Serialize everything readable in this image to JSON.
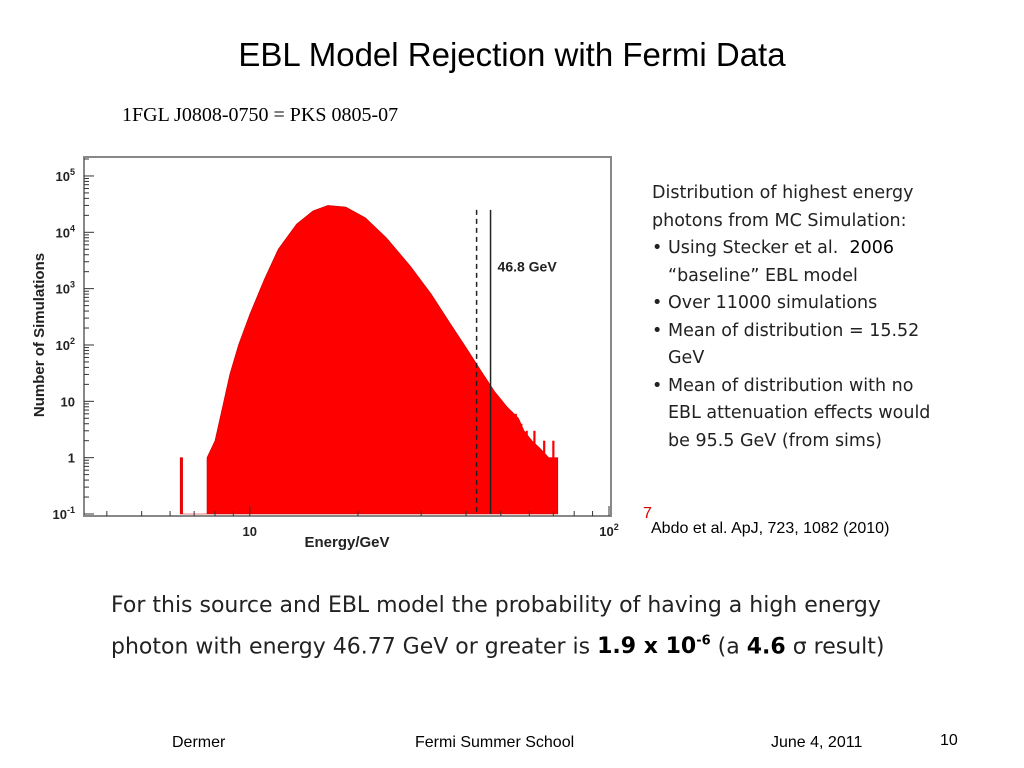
{
  "slide": {
    "title": "EBL Model Rejection with Fermi Data",
    "subtitle": "1FGL J0808-0750 = PKS 0805-07",
    "notes": {
      "heading_line1": "Distribution of highest energy",
      "heading_line2": "photons from MC Simulation:",
      "bullets": [
        {
          "text": "Using Stecker et al.",
          "extra": "2006",
          "line2": "“baseline” EBL model"
        },
        {
          "text": "Over 11000 simulations"
        },
        {
          "text": "Mean of distribution = 15.52",
          "line2": "GeV"
        },
        {
          "text": "Mean of distribution with no",
          "line2": "EBL attenuation effects would",
          "line3": "be 95.5 GeV (from sims)"
        }
      ]
    },
    "citation": "Abdo et al. ApJ, 723, 1082 (2010)",
    "citation_mark": "7",
    "result": {
      "line1": "For this source and EBL model the probability of having a high energy",
      "line2_prefix": "photon with energy 46.77 GeV or greater is ",
      "prob_mantissa": "1.9 x 10",
      "prob_exponent": "-6",
      "paren_open": " (a  ",
      "sigma_value": "4.6",
      "sigma_symbol": "σ",
      "paren_close": " result)"
    },
    "footer": {
      "author": "Dermer",
      "event": "Fermi Summer School",
      "date": "June 4, 2011",
      "page": "10"
    }
  },
  "chart_data": {
    "type": "histogram",
    "xlabel": "Energy/GeV",
    "ylabel": "Number of Simulations",
    "xscale": "log",
    "yscale": "log",
    "xlim": [
      3.5,
      100
    ],
    "ylim": [
      0.1,
      200000
    ],
    "x_ticks": [
      {
        "value": 10,
        "label": "10"
      },
      {
        "value": 100,
        "label": "10",
        "sup": "2"
      }
    ],
    "y_ticks": [
      {
        "value": 0.1,
        "label": "10",
        "sup": "-1"
      },
      {
        "value": 1,
        "label": "1"
      },
      {
        "value": 10,
        "label": "10"
      },
      {
        "value": 100,
        "label": "10",
        "sup": "2"
      },
      {
        "value": 1000,
        "label": "10",
        "sup": "3"
      },
      {
        "value": 10000,
        "label": "10",
        "sup": "4"
      },
      {
        "value": 100000,
        "label": "10",
        "sup": "5"
      }
    ],
    "fill_color": "#ff0000",
    "distribution_envelope": [
      [
        6.4,
        0.1
      ],
      [
        6.4,
        1
      ],
      [
        6.5,
        1
      ],
      [
        6.5,
        0.1
      ],
      [
        7.6,
        0.1
      ],
      [
        7.6,
        1
      ],
      [
        8.0,
        2
      ],
      [
        8.4,
        8
      ],
      [
        8.8,
        30
      ],
      [
        9.3,
        100
      ],
      [
        10.0,
        350
      ],
      [
        11.0,
        1500
      ],
      [
        12.0,
        5000
      ],
      [
        13.5,
        14000
      ],
      [
        15.0,
        24000
      ],
      [
        16.5,
        30000
      ],
      [
        18.5,
        28000
      ],
      [
        21.0,
        18000
      ],
      [
        24.0,
        8000
      ],
      [
        28.0,
        2500
      ],
      [
        32.0,
        800
      ],
      [
        36.0,
        250
      ],
      [
        40.0,
        90
      ],
      [
        44.0,
        35
      ],
      [
        48.0,
        15
      ],
      [
        52.0,
        8
      ],
      [
        56.0,
        5
      ],
      [
        58.0,
        3
      ],
      [
        61.0,
        2
      ],
      [
        64.0,
        1.5
      ],
      [
        68.0,
        1
      ],
      [
        72.0,
        1
      ],
      [
        72.0,
        0.1
      ]
    ],
    "vertical_lines": [
      {
        "x": 42.8,
        "style": "dashed",
        "label": ""
      },
      {
        "x": 46.8,
        "style": "solid",
        "label": "46.8 GeV"
      }
    ]
  }
}
